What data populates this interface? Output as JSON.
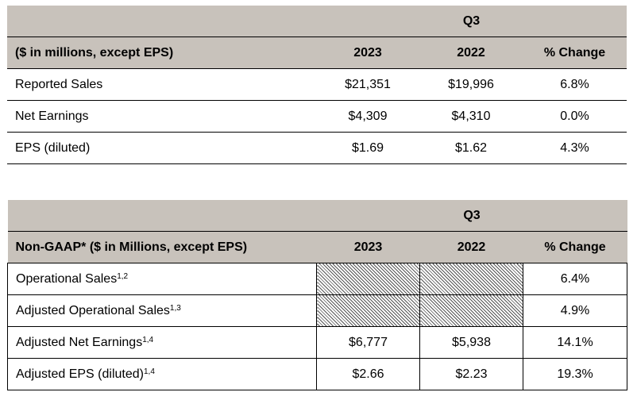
{
  "reported": {
    "period": "Q3",
    "header": {
      "label": "($ in millions, except EPS)",
      "col1": "2023",
      "col2": "2022",
      "col3": "% Change"
    },
    "rows": [
      {
        "label": "Reported Sales",
        "v2023": "$21,351",
        "v2022": "$19,996",
        "change": "6.8%"
      },
      {
        "label": "Net Earnings",
        "v2023": "$4,309",
        "v2022": "$4,310",
        "change": "0.0%"
      },
      {
        "label": "EPS (diluted)",
        "v2023": "$1.69",
        "v2022": "$1.62",
        "change": "4.3%"
      }
    ]
  },
  "non_gaap": {
    "period": "Q3",
    "header": {
      "label": "Non-GAAP* ($ in Millions, except EPS)",
      "col1": "2023",
      "col2": "2022",
      "col3": "% Change"
    },
    "rows": [
      {
        "label": "Operational Sales",
        "sup": "1,2",
        "v2023": "",
        "v2022": "",
        "change": "6.4%"
      },
      {
        "label": "Adjusted Operational Sales",
        "sup": "1,3",
        "v2023": "",
        "v2022": "",
        "change": "4.9%"
      },
      {
        "label": "Adjusted Net Earnings",
        "sup": "1,4",
        "v2023": "$6,777",
        "v2022": "$5,938",
        "change": "14.1%"
      },
      {
        "label": "Adjusted EPS (diluted)",
        "sup": "1,4",
        "v2023": "$2.66",
        "v2022": "$2.23",
        "change": "19.3%"
      }
    ]
  }
}
